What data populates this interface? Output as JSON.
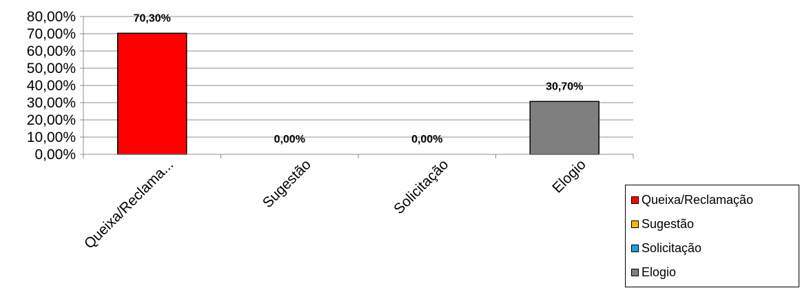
{
  "chart_data": {
    "type": "bar",
    "categories": [
      "Queixa/Reclama...",
      "Sugestão",
      "Solicitação",
      "Elogio"
    ],
    "values": [
      70.3,
      0.0,
      0.0,
      30.7
    ],
    "data_labels": [
      "70,30%",
      "0,00%",
      "0,00%",
      "30,70%"
    ],
    "colors": [
      "#ff0000",
      "#f5b800",
      "#1ea0e0",
      "#7f7f7f"
    ],
    "ylim": [
      0,
      80
    ],
    "y_ticks": [
      0,
      10,
      20,
      30,
      40,
      50,
      60,
      70,
      80
    ],
    "y_tick_labels": [
      "0,00%",
      "10,00%",
      "20,00%",
      "30,00%",
      "40,00%",
      "50,00%",
      "60,00%",
      "70,00%",
      "80,00%"
    ],
    "grid": true,
    "legend_position": "bottom-right",
    "legend": [
      "Queixa/Reclamação",
      "Sugestão",
      "Solicitação",
      "Elogio"
    ]
  }
}
